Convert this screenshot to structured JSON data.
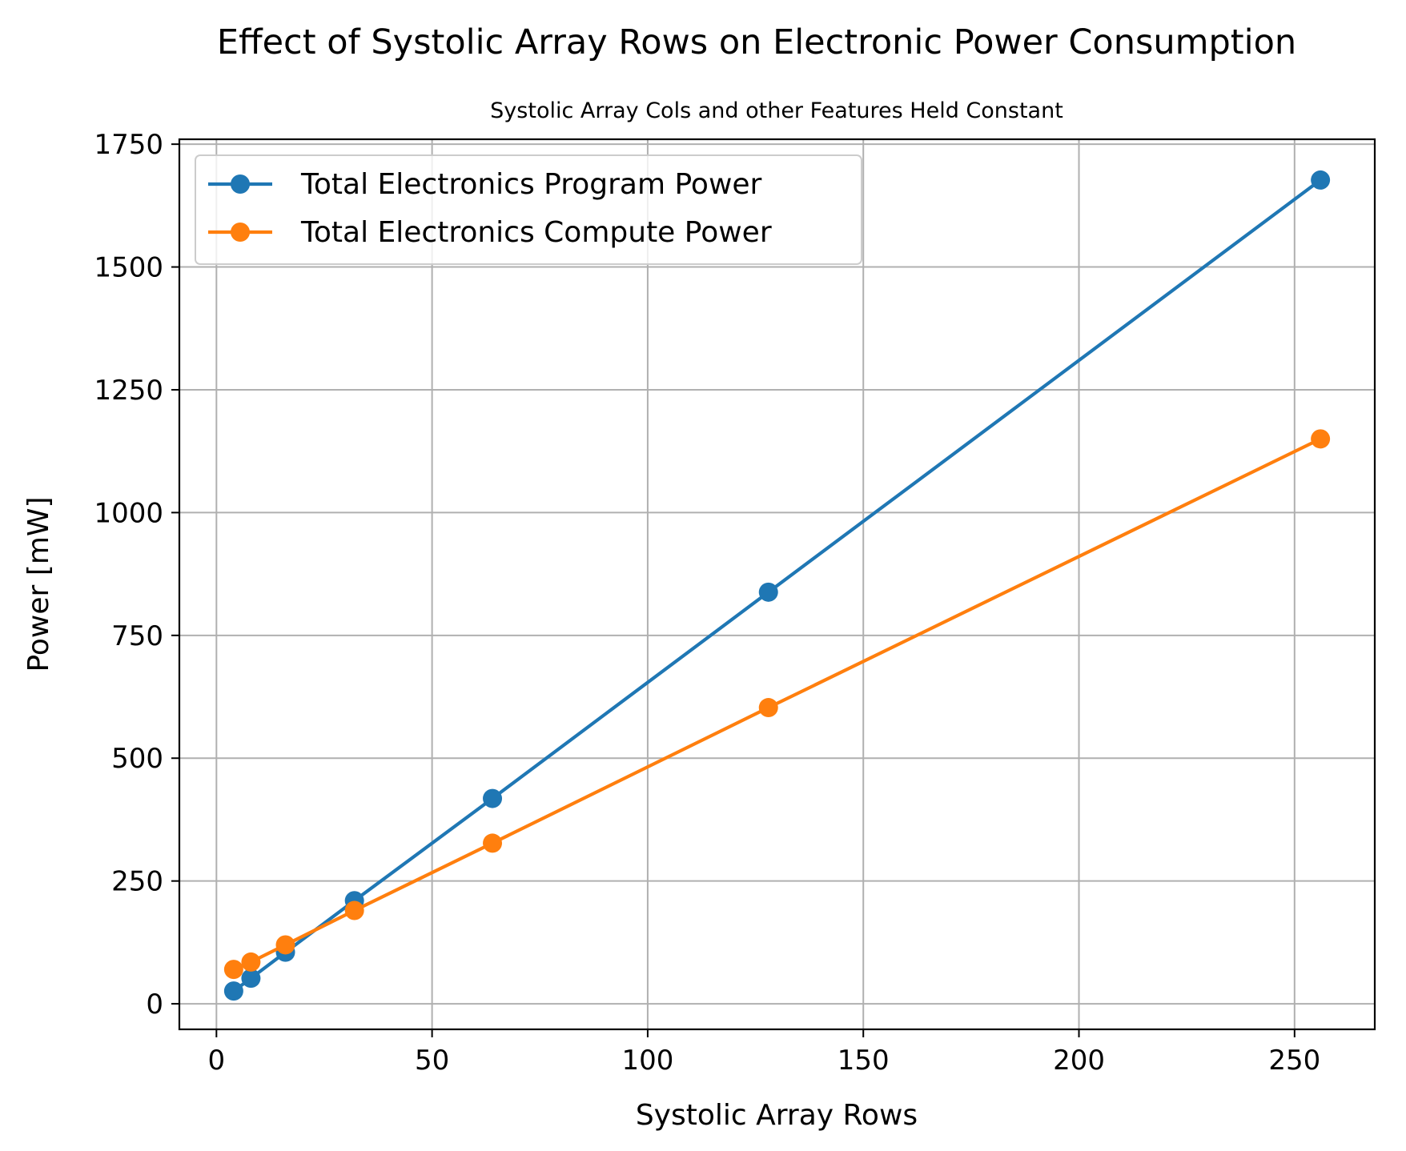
{
  "chart_data": {
    "type": "line",
    "title": "Effect of Systolic Array Rows on Electronic Power Consumption",
    "subtitle": "Systolic Array Cols and other Features Held Constant",
    "xlabel": "Systolic Array Rows",
    "ylabel": "Power [mW]",
    "xlim": [
      -8.6,
      268.6
    ],
    "ylim": [
      -52,
      1760
    ],
    "xticks": [
      0,
      50,
      100,
      150,
      200,
      250
    ],
    "yticks": [
      0,
      250,
      500,
      750,
      1000,
      1250,
      1500,
      1750
    ],
    "x": [
      4,
      8,
      16,
      32,
      64,
      128,
      256
    ],
    "grid": true,
    "legend_position": "top-left",
    "series": [
      {
        "name": "Total Electronics Program Power",
        "color": "#1f77b4",
        "values": [
          26,
          52,
          105,
          210,
          418,
          838,
          1677
        ]
      },
      {
        "name": "Total Electronics Compute Power",
        "color": "#ff7f0e",
        "values": [
          70,
          85,
          120,
          190,
          327,
          603,
          1150
        ]
      }
    ]
  }
}
